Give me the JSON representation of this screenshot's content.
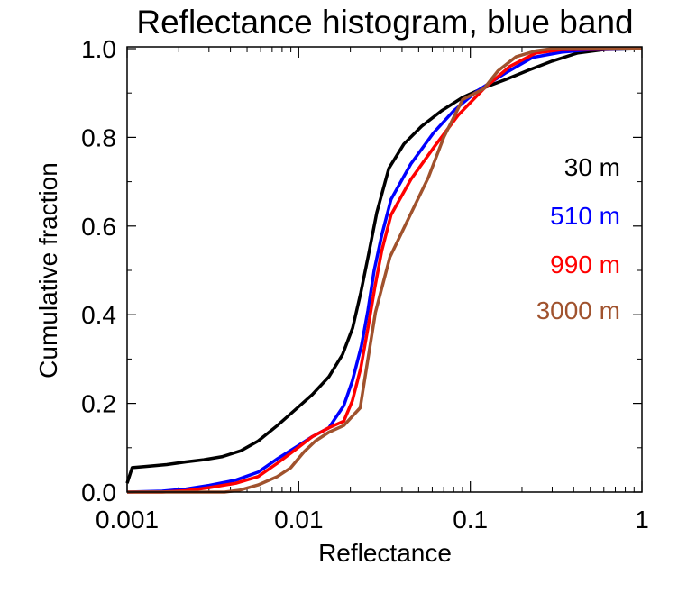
{
  "chart_data": {
    "type": "line",
    "title": "Reflectance histogram, blue band",
    "xlabel": "Reflectance",
    "ylabel": "Cumulative fraction",
    "x_scale": "log",
    "xlim": [
      0.001,
      1
    ],
    "ylim": [
      0.0,
      1.0
    ],
    "x_ticks": [
      {
        "value": 0.001,
        "label": "0.001"
      },
      {
        "value": 0.01,
        "label": "0.01"
      },
      {
        "value": 0.1,
        "label": "0.1"
      },
      {
        "value": 1,
        "label": "1"
      }
    ],
    "y_ticks": [
      {
        "value": 0.0,
        "label": "0.0"
      },
      {
        "value": 0.2,
        "label": "0.2"
      },
      {
        "value": 0.4,
        "label": "0.4"
      },
      {
        "value": 0.6,
        "label": "0.6"
      },
      {
        "value": 0.8,
        "label": "0.8"
      },
      {
        "value": 1.0,
        "label": "1.0"
      }
    ],
    "grid": false,
    "legend_position": "right, inside plot",
    "series": [
      {
        "name": "30 m",
        "color": "#000000",
        "points": [
          [
            0.001,
            0.02
          ],
          [
            0.00107,
            0.055
          ],
          [
            0.0013,
            0.058
          ],
          [
            0.0017,
            0.062
          ],
          [
            0.0022,
            0.068
          ],
          [
            0.0028,
            0.073
          ],
          [
            0.0036,
            0.08
          ],
          [
            0.0046,
            0.093
          ],
          [
            0.0058,
            0.115
          ],
          [
            0.0075,
            0.15
          ],
          [
            0.0095,
            0.185
          ],
          [
            0.012,
            0.22
          ],
          [
            0.015,
            0.26
          ],
          [
            0.018,
            0.31
          ],
          [
            0.0206,
            0.37
          ],
          [
            0.023,
            0.45
          ],
          [
            0.0255,
            0.535
          ],
          [
            0.0285,
            0.63
          ],
          [
            0.0335,
            0.73
          ],
          [
            0.041,
            0.785
          ],
          [
            0.052,
            0.825
          ],
          [
            0.068,
            0.86
          ],
          [
            0.09,
            0.89
          ],
          [
            0.12,
            0.912
          ],
          [
            0.16,
            0.93
          ],
          [
            0.22,
            0.952
          ],
          [
            0.3,
            0.972
          ],
          [
            0.42,
            0.99
          ],
          [
            0.6,
            0.998
          ],
          [
            1,
            1.0
          ]
        ]
      },
      {
        "name": "510 m",
        "color": "#0000ff",
        "points": [
          [
            0.001,
            0.0
          ],
          [
            0.0016,
            0.002
          ],
          [
            0.0022,
            0.007
          ],
          [
            0.003,
            0.015
          ],
          [
            0.0043,
            0.027
          ],
          [
            0.0058,
            0.045
          ],
          [
            0.0075,
            0.075
          ],
          [
            0.0095,
            0.1
          ],
          [
            0.012,
            0.125
          ],
          [
            0.015,
            0.145
          ],
          [
            0.0183,
            0.195
          ],
          [
            0.0205,
            0.25
          ],
          [
            0.0232,
            0.33
          ],
          [
            0.0253,
            0.41
          ],
          [
            0.0275,
            0.5
          ],
          [
            0.0305,
            0.58
          ],
          [
            0.0345,
            0.66
          ],
          [
            0.045,
            0.74
          ],
          [
            0.061,
            0.81
          ],
          [
            0.08,
            0.86
          ],
          [
            0.11,
            0.905
          ],
          [
            0.16,
            0.945
          ],
          [
            0.23,
            0.98
          ],
          [
            0.34,
            0.992
          ],
          [
            0.5,
            0.998
          ],
          [
            1,
            1.0
          ]
        ]
      },
      {
        "name": "990 m",
        "color": "#ff0000",
        "points": [
          [
            0.001,
            0.0
          ],
          [
            0.0016,
            0.0
          ],
          [
            0.0022,
            0.003
          ],
          [
            0.003,
            0.01
          ],
          [
            0.0043,
            0.02
          ],
          [
            0.0058,
            0.035
          ],
          [
            0.0075,
            0.065
          ],
          [
            0.0095,
            0.095
          ],
          [
            0.012,
            0.125
          ],
          [
            0.015,
            0.145
          ],
          [
            0.0183,
            0.16
          ],
          [
            0.0205,
            0.205
          ],
          [
            0.023,
            0.28
          ],
          [
            0.0253,
            0.37
          ],
          [
            0.0277,
            0.46
          ],
          [
            0.0305,
            0.545
          ],
          [
            0.0345,
            0.625
          ],
          [
            0.045,
            0.705
          ],
          [
            0.062,
            0.78
          ],
          [
            0.085,
            0.85
          ],
          [
            0.12,
            0.91
          ],
          [
            0.17,
            0.96
          ],
          [
            0.24,
            0.99
          ],
          [
            0.34,
            0.998
          ],
          [
            1,
            1.0
          ]
        ]
      },
      {
        "name": "3000 m",
        "color": "#a0522d",
        "points": [
          [
            0.001,
            0.0
          ],
          [
            0.0025,
            0.0
          ],
          [
            0.0037,
            0.0
          ],
          [
            0.0045,
            0.004
          ],
          [
            0.0058,
            0.016
          ],
          [
            0.0075,
            0.035
          ],
          [
            0.009,
            0.055
          ],
          [
            0.0107,
            0.09
          ],
          [
            0.0125,
            0.115
          ],
          [
            0.015,
            0.135
          ],
          [
            0.0183,
            0.15
          ],
          [
            0.0228,
            0.19
          ],
          [
            0.0253,
            0.3
          ],
          [
            0.028,
            0.405
          ],
          [
            0.034,
            0.53
          ],
          [
            0.044,
            0.62
          ],
          [
            0.057,
            0.71
          ],
          [
            0.07,
            0.8
          ],
          [
            0.09,
            0.885
          ],
          [
            0.12,
            0.91
          ],
          [
            0.145,
            0.95
          ],
          [
            0.185,
            0.982
          ],
          [
            0.24,
            0.995
          ],
          [
            0.3,
            1.0
          ],
          [
            1,
            1.0
          ]
        ]
      }
    ]
  }
}
